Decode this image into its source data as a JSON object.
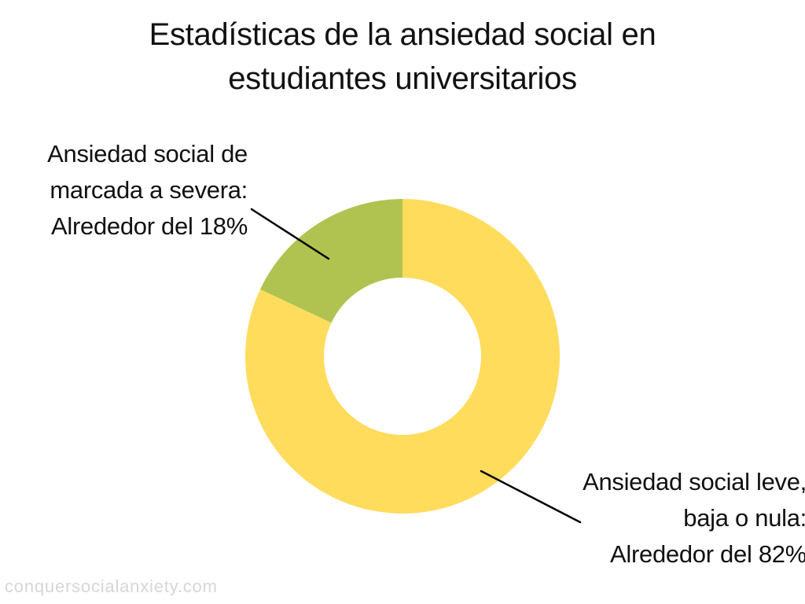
{
  "chart_data": {
    "type": "pie",
    "title_lines": [
      "Estadísticas de la ansiedad social en",
      "estudiantes universitarios"
    ],
    "slices": [
      {
        "label_lines": [
          "Ansiedad social leve,",
          "baja o nula:",
          "Alrededor del 82%"
        ],
        "value": 82,
        "color": "#FFDC5C"
      },
      {
        "label_lines": [
          "Ansiedad social de",
          "marcada a severa:",
          "Alrededor del 18%"
        ],
        "value": 18,
        "color": "#B0C350"
      }
    ],
    "donut": true,
    "legend": "none"
  },
  "watermark": "conquersocialanxiety.com",
  "colors": {
    "background": "#FFFFFF",
    "text": "#111111",
    "leader_line": "#000000",
    "watermark": "#D6D6D6"
  }
}
